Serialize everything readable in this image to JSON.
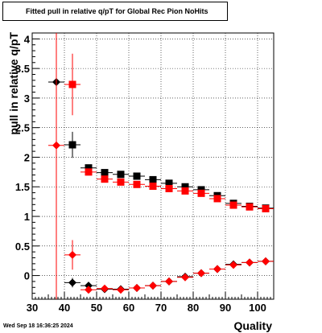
{
  "chart_data": {
    "type": "scatter",
    "title": "Fitted pull in relative q/pT for Global Rec Pion NoHits",
    "xlabel": "Quality",
    "ylabel": "pull in relative q/pT",
    "xlim": [
      30,
      105
    ],
    "ylim": [
      -0.4,
      4.1
    ],
    "x_ticks": [
      30,
      40,
      50,
      60,
      70,
      80,
      90,
      100
    ],
    "y_ticks": [
      0,
      0.5,
      1,
      1.5,
      2,
      2.5,
      3,
      3.5,
      4
    ],
    "grid": true,
    "legend": "none",
    "series": [
      {
        "color": "#000000",
        "marker": "square",
        "x": [
          42.5,
          47.5,
          52.5,
          57.5,
          62.5,
          67.5,
          72.5,
          77.5,
          82.5,
          87.5,
          92.5,
          97.5,
          102.5
        ],
        "y": [
          2.21,
          1.82,
          1.74,
          1.71,
          1.68,
          1.62,
          1.56,
          1.5,
          1.45,
          1.35,
          1.22,
          1.17,
          1.14
        ],
        "yerr": [
          0.22,
          0.02,
          0.02,
          0.02,
          0.02,
          0.02,
          0.02,
          0.02,
          0.02,
          0.02,
          0.02,
          0.02,
          0.02
        ]
      },
      {
        "color": "#ff0000",
        "marker": "square",
        "x": [
          42.5,
          47.5,
          52.5,
          57.5,
          62.5,
          67.5,
          72.5,
          77.5,
          82.5,
          87.5,
          92.5,
          97.5,
          102.5
        ],
        "y": [
          3.23,
          1.75,
          1.63,
          1.58,
          1.54,
          1.51,
          1.47,
          1.43,
          1.39,
          1.3,
          1.19,
          1.16,
          1.13
        ],
        "yerr": [
          0.52,
          0.03,
          0.02,
          0.02,
          0.02,
          0.02,
          0.02,
          0.02,
          0.02,
          0.02,
          0.02,
          0.02,
          0.02
        ]
      },
      {
        "color": "#000000",
        "marker": "diamond",
        "x": [
          37.5,
          42.5,
          47.5,
          52.5,
          57.5,
          62.5,
          67.5,
          72.5,
          77.5,
          82.5,
          87.5,
          92.5,
          97.5,
          102.5
        ],
        "y": [
          3.27,
          -0.12,
          -0.17,
          -0.23,
          -0.23,
          -0.21,
          -0.17,
          -0.1,
          -0.02,
          0.04,
          0.11,
          0.19,
          0.22,
          0.24
        ],
        "yerr": [
          0.0,
          0.08,
          0.02,
          0.02,
          0.02,
          0.02,
          0.02,
          0.02,
          0.02,
          0.02,
          0.02,
          0.02,
          0.02,
          0.02
        ]
      },
      {
        "color": "#ff0000",
        "marker": "diamond",
        "x": [
          37.5,
          42.5,
          47.5,
          52.5,
          57.5,
          62.5,
          67.5,
          72.5,
          77.5,
          82.5,
          87.5,
          92.5,
          97.5,
          102.5
        ],
        "y": [
          2.2,
          0.35,
          -0.24,
          -0.22,
          -0.24,
          -0.21,
          -0.17,
          -0.1,
          -0.03,
          0.04,
          0.11,
          0.18,
          0.22,
          0.24
        ],
        "yerr": [
          3.0,
          0.25,
          0.03,
          0.02,
          0.02,
          0.02,
          0.02,
          0.02,
          0.02,
          0.02,
          0.02,
          0.02,
          0.02,
          0.02
        ]
      }
    ]
  },
  "timestamp": "Wed Sep 18 16:36:25 2024"
}
